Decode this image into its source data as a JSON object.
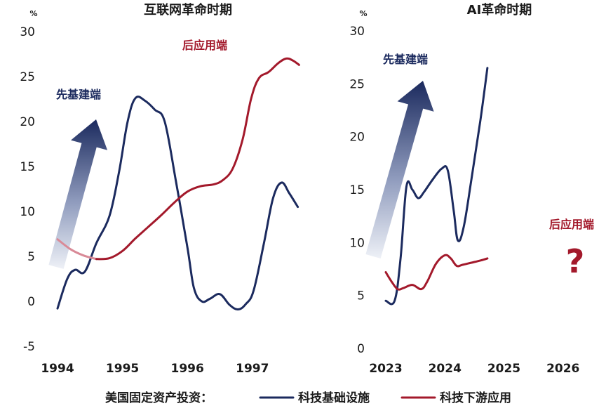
{
  "colors": {
    "infra": "#1b2a5e",
    "app": "#a3192b",
    "app_light": "#d98a97",
    "arrow_top": "#1b2a5e",
    "arrow_bottom": "#eef1f7"
  },
  "legend": {
    "prefix": "美国固定资产投资：",
    "series_infra": "科技基础设施",
    "series_app": "科技下游应用"
  },
  "chart_data": [
    {
      "type": "line",
      "title": "互联网革命时期",
      "unit": "%",
      "ylim": [
        -5,
        30
      ],
      "yticks": [
        -5,
        0,
        5,
        10,
        15,
        20,
        25,
        30
      ],
      "xlim": [
        1994,
        1997.78
      ],
      "xticks": [
        1994,
        1995,
        1996,
        1997
      ],
      "annotations": {
        "arrow_label": "先基建端",
        "app_label": "后应用端"
      },
      "series": [
        {
          "name": "科技基础设施",
          "key": "infra",
          "points": [
            [
              1994.0,
              -0.8
            ],
            [
              1994.15,
              2.5
            ],
            [
              1994.27,
              3.5
            ],
            [
              1994.42,
              3.3
            ],
            [
              1994.6,
              6.5
            ],
            [
              1994.8,
              9.5
            ],
            [
              1994.95,
              14.5
            ],
            [
              1995.08,
              20.0
            ],
            [
              1995.2,
              22.6
            ],
            [
              1995.35,
              22.3
            ],
            [
              1995.5,
              21.3
            ],
            [
              1995.65,
              20.0
            ],
            [
              1995.82,
              13.5
            ],
            [
              1996.0,
              6.0
            ],
            [
              1996.1,
              1.5
            ],
            [
              1996.22,
              0.0
            ],
            [
              1996.35,
              0.3
            ],
            [
              1996.5,
              0.8
            ],
            [
              1996.65,
              -0.4
            ],
            [
              1996.78,
              -0.9
            ],
            [
              1996.9,
              -0.3
            ],
            [
              1997.02,
              1.2
            ],
            [
              1997.18,
              6.5
            ],
            [
              1997.32,
              11.5
            ],
            [
              1997.45,
              13.2
            ],
            [
              1997.57,
              12.0
            ],
            [
              1997.7,
              10.5
            ]
          ]
        },
        {
          "name": "科技下游应用",
          "key": "app",
          "points": [
            [
              1994.0,
              6.9
            ],
            [
              1994.2,
              5.8
            ],
            [
              1994.4,
              5.1
            ],
            [
              1994.6,
              4.7
            ],
            [
              1994.8,
              4.8
            ],
            [
              1995.0,
              5.6
            ],
            [
              1995.2,
              7.0
            ],
            [
              1995.4,
              8.3
            ],
            [
              1995.6,
              9.6
            ],
            [
              1995.8,
              11.0
            ],
            [
              1996.0,
              12.2
            ],
            [
              1996.2,
              12.8
            ],
            [
              1996.4,
              13.0
            ],
            [
              1996.55,
              13.5
            ],
            [
              1996.7,
              14.8
            ],
            [
              1996.85,
              18.0
            ],
            [
              1996.98,
              22.5
            ],
            [
              1997.1,
              24.8
            ],
            [
              1997.25,
              25.5
            ],
            [
              1997.4,
              26.5
            ],
            [
              1997.52,
              27.0
            ],
            [
              1997.62,
              26.8
            ],
            [
              1997.72,
              26.3
            ]
          ]
        }
      ]
    },
    {
      "type": "line",
      "title": "AI革命时期",
      "unit": "%",
      "ylim": [
        0,
        30
      ],
      "yticks": [
        0,
        5,
        10,
        15,
        20,
        25,
        30
      ],
      "xlim": [
        2023,
        2026.3
      ],
      "xticks": [
        2023,
        2024,
        2025,
        2026
      ],
      "annotations": {
        "arrow_label": "先基建端",
        "app_label": "后应用端",
        "question": "?"
      },
      "series": [
        {
          "name": "科技基础设施",
          "key": "infra",
          "points": [
            [
              2023.0,
              4.5
            ],
            [
              2023.15,
              4.5
            ],
            [
              2023.25,
              8.5
            ],
            [
              2023.35,
              15.3
            ],
            [
              2023.45,
              15.0
            ],
            [
              2023.55,
              14.2
            ],
            [
              2023.65,
              14.8
            ],
            [
              2023.8,
              16.0
            ],
            [
              2023.95,
              17.0
            ],
            [
              2024.05,
              16.8
            ],
            [
              2024.15,
              13.0
            ],
            [
              2024.22,
              10.2
            ],
            [
              2024.32,
              11.5
            ],
            [
              2024.45,
              16.0
            ],
            [
              2024.6,
              21.5
            ],
            [
              2024.72,
              26.5
            ]
          ]
        },
        {
          "name": "科技下游应用",
          "key": "app",
          "points": [
            [
              2023.0,
              7.2
            ],
            [
              2023.1,
              6.3
            ],
            [
              2023.2,
              5.6
            ],
            [
              2023.3,
              5.7
            ],
            [
              2023.45,
              6.0
            ],
            [
              2023.6,
              5.6
            ],
            [
              2023.7,
              6.3
            ],
            [
              2023.85,
              8.0
            ],
            [
              2024.0,
              8.8
            ],
            [
              2024.1,
              8.5
            ],
            [
              2024.2,
              7.8
            ],
            [
              2024.3,
              7.9
            ],
            [
              2024.45,
              8.1
            ],
            [
              2024.6,
              8.3
            ],
            [
              2024.72,
              8.5
            ]
          ]
        }
      ]
    }
  ]
}
